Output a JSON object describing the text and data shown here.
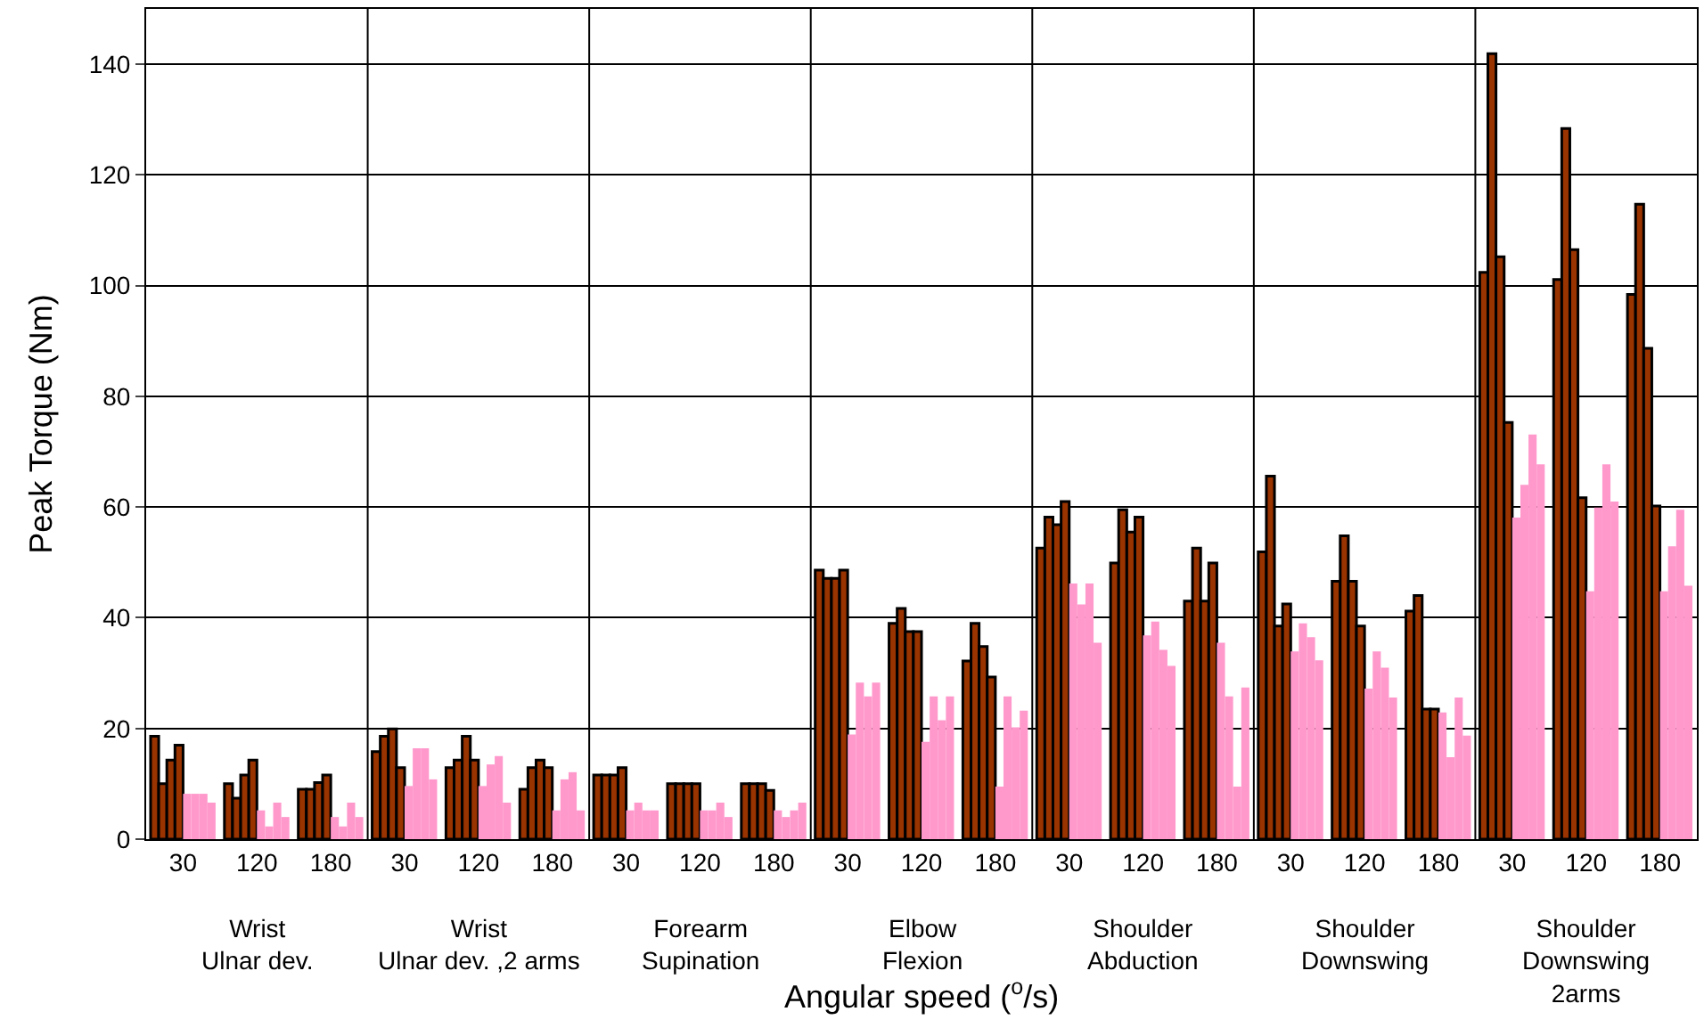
{
  "chart_data": {
    "type": "bar",
    "ylabel": "Peak Torque (Nm)",
    "xlabel": "Angular speed ($^{o}$/s)",
    "categories": [
      "30",
      "120",
      "180",
      "30",
      "120",
      "180",
      "30",
      "120",
      "180",
      "30",
      "120",
      "180",
      "30",
      "120",
      "180",
      "30",
      "120",
      "180",
      "30",
      "120",
      "180"
    ],
    "series": [
      {
        "color": "#993300",
        "values": [
          18.6,
          10,
          9,
          15.8,
          12.9,
          9,
          11.6,
          10,
          10,
          48.6,
          39,
          32.2,
          52.6,
          49.9,
          43,
          51.9,
          46.6,
          41.2,
          102.4,
          101.1,
          98.4
        ]
      },
      {
        "color": "#993300",
        "values": [
          10,
          7.4,
          9,
          18.6,
          14.3,
          12.9,
          11.6,
          10,
          10,
          47.1,
          41.7,
          39,
          58.2,
          59.5,
          52.6,
          65.6,
          54.8,
          44,
          141.9,
          128.4,
          114.7
        ]
      },
      {
        "color": "#993300",
        "values": [
          14.3,
          11.6,
          10.2,
          19.9,
          18.6,
          14.3,
          11.6,
          10,
          10,
          47.1,
          37.5,
          34.8,
          56.8,
          55.5,
          43,
          38.5,
          46.6,
          23.5,
          105.2,
          106.5,
          88.7
        ]
      },
      {
        "color": "#993300",
        "values": [
          17,
          14.3,
          11.6,
          12.9,
          14.3,
          12.9,
          12.9,
          10,
          8.8,
          48.6,
          37.5,
          29.3,
          61,
          58.2,
          49.9,
          42.5,
          38.5,
          23.5,
          75.3,
          61.7,
          60.2
        ]
      },
      {
        "color": "#ff99cc",
        "values": [
          8.2,
          5.2,
          4,
          9.6,
          9.6,
          5.2,
          5.2,
          5.2,
          5.2,
          18.9,
          17.6,
          9.5,
          46.2,
          36.8,
          35.5,
          33.9,
          27.2,
          22.9,
          58.1,
          44.8,
          44.8
        ]
      },
      {
        "color": "#ff99cc",
        "values": [
          8.2,
          2.3,
          2.3,
          16.4,
          13.5,
          10.8,
          6.6,
          5.2,
          4,
          28.3,
          25.8,
          25.8,
          42.4,
          39.3,
          25.8,
          39,
          33.9,
          14.8,
          64,
          59.9,
          52.9
        ]
      },
      {
        "color": "#ff99cc",
        "values": [
          8.2,
          6.6,
          6.6,
          16.4,
          15,
          12.1,
          5.2,
          6.6,
          5.2,
          25.8,
          21.5,
          20.2,
          46.2,
          34.2,
          9.5,
          36.5,
          31,
          25.6,
          73.1,
          67.7,
          59.5
        ]
      },
      {
        "color": "#ff99cc",
        "values": [
          6.6,
          4,
          4,
          10.8,
          6.6,
          5.2,
          5.2,
          4,
          6.6,
          28.3,
          25.8,
          23.2,
          35.5,
          31.3,
          27.4,
          32.3,
          25.6,
          18.7,
          67.7,
          61,
          45.8
        ]
      }
    ],
    "annotations": [
      "Wrist\nUlnar dev.",
      "Wrist\nUlnar dev. ,2 arms",
      "Forearm\nSupination",
      "Elbow\nFlexion",
      "Shoulder\nAbduction",
      "Shoulder\nDownswing",
      "Shoulder\nDownswing\n2arms"
    ],
    "ylim": [
      0,
      150
    ],
    "yticks": [
      0,
      20,
      40,
      60,
      80,
      100,
      120,
      140
    ],
    "grid": "y",
    "legend": false
  }
}
